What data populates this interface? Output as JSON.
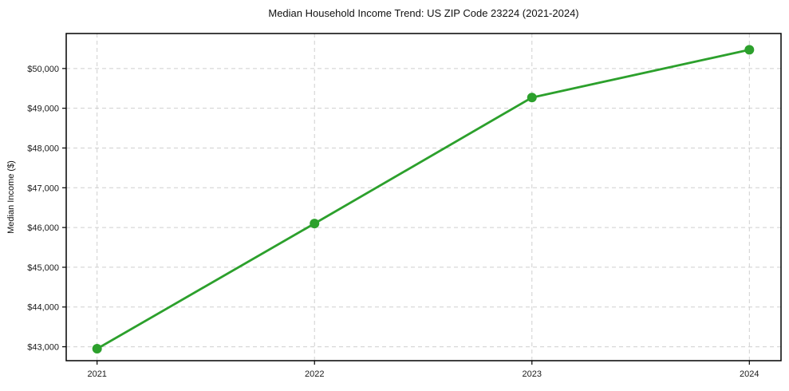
{
  "chart_data": {
    "type": "line",
    "title": "Median Household Income Trend: US ZIP Code 23224 (2021-2024)",
    "xlabel": "",
    "ylabel": "Median Income ($)",
    "x": [
      2021,
      2022,
      2023,
      2024
    ],
    "xtick_labels": [
      "2021",
      "2022",
      "2023",
      "2024"
    ],
    "series": [
      {
        "name": "Median Household Income",
        "values": [
          42950,
          46100,
          49270,
          50470
        ],
        "color": "#2ca02c",
        "marker": "circle"
      }
    ],
    "ylim": [
      42650,
      50880
    ],
    "yticks": [
      {
        "value": 43000,
        "label": "$43,000"
      },
      {
        "value": 44000,
        "label": "$44,000"
      },
      {
        "value": 45000,
        "label": "$45,000"
      },
      {
        "value": 46000,
        "label": "$46,000"
      },
      {
        "value": 47000,
        "label": "$47,000"
      },
      {
        "value": 48000,
        "label": "$48,000"
      },
      {
        "value": 49000,
        "label": "$49,000"
      },
      {
        "value": 50000,
        "label": "$50,000"
      }
    ],
    "grid": "dashed, both axes",
    "legend_position": "none"
  },
  "colors": {
    "line": "#2ca02c",
    "grid": "#cfcfcf",
    "spine": "#000000",
    "background": "#ffffff",
    "text": "#1a1a1a"
  }
}
